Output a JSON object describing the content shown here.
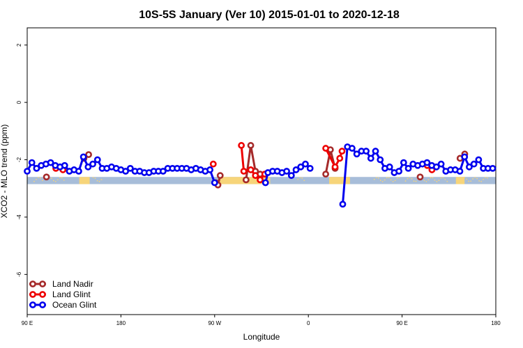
{
  "chart_data": {
    "type": "line",
    "title": "10S-5S January (Ver 10)   2015-01-01 to 2020-12-18",
    "xlabel": "Longitude",
    "ylabel": "XCO2 - MLO trend (ppm)",
    "xlim": [
      -90,
      180
    ],
    "ylim": [
      -7.4,
      2.6
    ],
    "x_ticks": [
      {
        "value": -90,
        "label": "90 E"
      },
      {
        "value": -36,
        "label": "180"
      },
      {
        "value": 18,
        "label": "90 W"
      },
      {
        "value": 72,
        "label": "0"
      },
      {
        "value": 126,
        "label": "90 E"
      },
      {
        "value": 180,
        "label": "180"
      }
    ],
    "y_ticks": [
      {
        "value": 2,
        "label": "2"
      },
      {
        "value": 0,
        "label": "0"
      },
      {
        "value": -2,
        "label": "-2"
      },
      {
        "value": -4,
        "label": "-4"
      },
      {
        "value": -6,
        "label": "-6"
      }
    ],
    "legend_position": "bottom-left",
    "series": [
      {
        "name": "Land Nadir",
        "color": "#a52a2a",
        "segments": [
          [
            {
              "x": -78.9,
              "y": -2.6
            }
          ],
          [
            {
              "x": -57.3,
              "y": -1.95
            },
            {
              "x": -54.6,
              "y": -1.82
            }
          ],
          [
            {
              "x": 18.5,
              "y": -2.8
            },
            {
              "x": 19.9,
              "y": -2.88
            },
            {
              "x": 21.2,
              "y": -2.55
            }
          ],
          [
            {
              "x": 36.1,
              "y": -2.7
            },
            {
              "x": 38.8,
              "y": -1.5
            },
            {
              "x": 41.5,
              "y": -2.4
            },
            {
              "x": 44.2,
              "y": -2.5
            }
          ],
          [
            {
              "x": 82.0,
              "y": -2.5
            },
            {
              "x": 84.7,
              "y": -1.65
            },
            {
              "x": 87.4,
              "y": -2.3
            }
          ],
          [
            {
              "x": 136.4,
              "y": -2.6
            }
          ],
          [
            {
              "x": 159.4,
              "y": -1.95
            },
            {
              "x": 162.1,
              "y": -1.8
            }
          ]
        ]
      },
      {
        "name": "Land Glint",
        "color": "#ee0000",
        "segments": [
          [
            {
              "x": -73.5,
              "y": -2.3
            },
            {
              "x": -69.4,
              "y": -2.35
            }
          ],
          [
            {
              "x": 17.2,
              "y": -2.15
            }
          ],
          [
            {
              "x": 33.4,
              "y": -1.5
            },
            {
              "x": 34.8,
              "y": -2.4
            },
            {
              "x": 38.8,
              "y": -2.35
            },
            {
              "x": 41.5,
              "y": -2.55
            },
            {
              "x": 44.2,
              "y": -2.7
            },
            {
              "x": 46.9,
              "y": -2.5
            }
          ],
          [
            {
              "x": 82.0,
              "y": -1.6
            },
            {
              "x": 87.4,
              "y": -2.25
            },
            {
              "x": 90.1,
              "y": -1.95
            },
            {
              "x": 91.4,
              "y": -1.7
            }
          ],
          [
            {
              "x": 140.5,
              "y": -2.2
            },
            {
              "x": 143.2,
              "y": -2.35
            }
          ]
        ]
      },
      {
        "name": "Ocean Glint",
        "color": "#0000ee",
        "segments": [
          [
            {
              "x": -90.0,
              "y": -2.4
            },
            {
              "x": -87.3,
              "y": -2.1
            },
            {
              "x": -84.6,
              "y": -2.3
            },
            {
              "x": -81.9,
              "y": -2.2
            },
            {
              "x": -79.2,
              "y": -2.15
            },
            {
              "x": -76.5,
              "y": -2.1
            },
            {
              "x": -73.8,
              "y": -2.2
            },
            {
              "x": -71.1,
              "y": -2.25
            },
            {
              "x": -68.4,
              "y": -2.2
            },
            {
              "x": -65.7,
              "y": -2.4
            },
            {
              "x": -63.0,
              "y": -2.35
            },
            {
              "x": -60.3,
              "y": -2.4
            },
            {
              "x": -57.6,
              "y": -1.9
            },
            {
              "x": -54.9,
              "y": -2.25
            },
            {
              "x": -52.2,
              "y": -2.15
            },
            {
              "x": -49.5,
              "y": -2.0
            },
            {
              "x": -46.8,
              "y": -2.3
            },
            {
              "x": -44.1,
              "y": -2.3
            },
            {
              "x": -41.4,
              "y": -2.25
            },
            {
              "x": -38.7,
              "y": -2.3
            },
            {
              "x": -36.0,
              "y": -2.35
            },
            {
              "x": -33.3,
              "y": -2.4
            },
            {
              "x": -30.6,
              "y": -2.3
            },
            {
              "x": -27.9,
              "y": -2.4
            },
            {
              "x": -25.2,
              "y": -2.4
            },
            {
              "x": -22.5,
              "y": -2.45
            },
            {
              "x": -19.8,
              "y": -2.45
            },
            {
              "x": -17.1,
              "y": -2.4
            },
            {
              "x": -14.4,
              "y": -2.4
            },
            {
              "x": -11.7,
              "y": -2.4
            },
            {
              "x": -9.0,
              "y": -2.3
            },
            {
              "x": -6.3,
              "y": -2.3
            },
            {
              "x": -3.6,
              "y": -2.3
            },
            {
              "x": -0.9,
              "y": -2.3
            },
            {
              "x": 1.8,
              "y": -2.3
            },
            {
              "x": 4.5,
              "y": -2.35
            },
            {
              "x": 7.2,
              "y": -2.3
            },
            {
              "x": 9.9,
              "y": -2.35
            },
            {
              "x": 12.6,
              "y": -2.4
            },
            {
              "x": 15.3,
              "y": -2.35
            },
            {
              "x": 18.0,
              "y": -2.8
            }
          ],
          [
            {
              "x": 47.3,
              "y": -2.8
            },
            {
              "x": 48.7,
              "y": -2.45
            },
            {
              "x": 51.4,
              "y": -2.4
            },
            {
              "x": 54.1,
              "y": -2.4
            },
            {
              "x": 56.8,
              "y": -2.45
            },
            {
              "x": 59.5,
              "y": -2.4
            },
            {
              "x": 62.2,
              "y": -2.55
            },
            {
              "x": 64.9,
              "y": -2.35
            },
            {
              "x": 67.6,
              "y": -2.25
            },
            {
              "x": 70.3,
              "y": -2.15
            },
            {
              "x": 73.0,
              "y": -2.3
            }
          ],
          [
            {
              "x": 91.8,
              "y": -3.55
            },
            {
              "x": 94.5,
              "y": -1.55
            },
            {
              "x": 97.2,
              "y": -1.6
            },
            {
              "x": 99.9,
              "y": -1.8
            },
            {
              "x": 102.6,
              "y": -1.7
            },
            {
              "x": 105.3,
              "y": -1.7
            },
            {
              "x": 108.0,
              "y": -1.95
            },
            {
              "x": 110.7,
              "y": -1.7
            },
            {
              "x": 113.4,
              "y": -2.0
            },
            {
              "x": 116.1,
              "y": -2.3
            },
            {
              "x": 118.8,
              "y": -2.25
            },
            {
              "x": 121.5,
              "y": -2.45
            },
            {
              "x": 124.2,
              "y": -2.4
            },
            {
              "x": 126.9,
              "y": -2.1
            },
            {
              "x": 129.6,
              "y": -2.3
            },
            {
              "x": 132.3,
              "y": -2.15
            },
            {
              "x": 135.0,
              "y": -2.2
            },
            {
              "x": 137.7,
              "y": -2.15
            },
            {
              "x": 140.4,
              "y": -2.1
            },
            {
              "x": 143.1,
              "y": -2.2
            },
            {
              "x": 145.8,
              "y": -2.25
            },
            {
              "x": 148.5,
              "y": -2.15
            },
            {
              "x": 151.2,
              "y": -2.4
            },
            {
              "x": 153.9,
              "y": -2.35
            },
            {
              "x": 156.6,
              "y": -2.35
            },
            {
              "x": 159.3,
              "y": -2.4
            },
            {
              "x": 162.0,
              "y": -1.9
            },
            {
              "x": 164.7,
              "y": -2.25
            },
            {
              "x": 167.4,
              "y": -2.15
            },
            {
              "x": 170.1,
              "y": -2.0
            },
            {
              "x": 172.8,
              "y": -2.3
            },
            {
              "x": 175.5,
              "y": -2.3
            },
            {
              "x": 178.2,
              "y": -2.3
            }
          ]
        ]
      }
    ],
    "land_band_y": [
      -2.85,
      -2.6
    ],
    "land_band_colors": {
      "ocean": "#a7bdd9",
      "land": "#f7d57a"
    },
    "land_spans": [
      [
        -60,
        -54
      ],
      [
        20,
        50
      ],
      [
        84,
        96
      ],
      [
        157,
        162
      ]
    ],
    "land_dots": [
      [
        -86,
        -80
      ],
      [
        -76,
        -68
      ],
      [
        -52,
        -46
      ],
      [
        66,
        70
      ],
      [
        110,
        125
      ],
      [
        128,
        146
      ],
      [
        146,
        152
      ],
      [
        162,
        176
      ]
    ]
  }
}
